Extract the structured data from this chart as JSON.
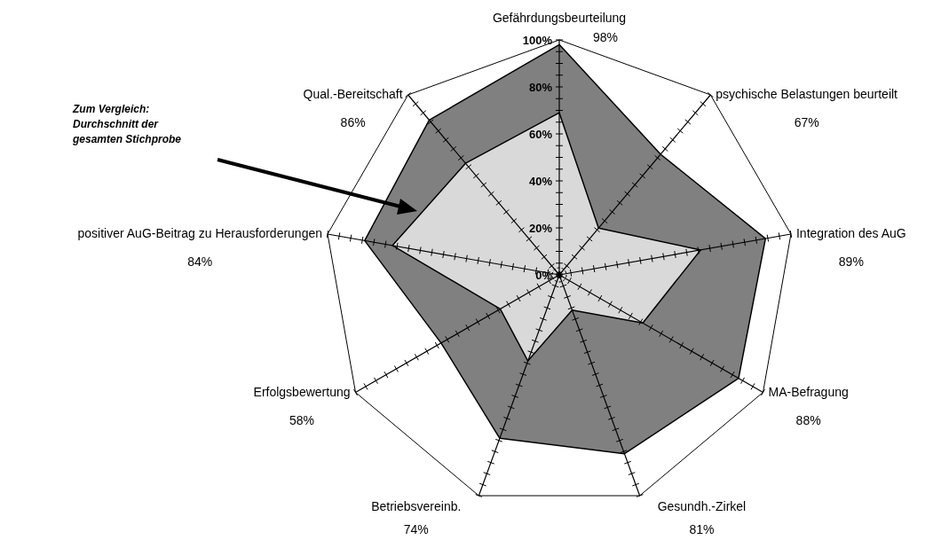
{
  "chart_data": {
    "type": "radar",
    "categories": [
      "Gefährdungsbeurteilung\n98%",
      "psychische Belastungen beurteilt\n67%",
      "Integration des AuG\n89%",
      "MA-Befragung\n88%",
      "Gesundh.-Zirkel\n81%",
      "Betriebsvereinb.\n74%",
      "Erfolgsbewertung\n58%",
      "positiver AuG-Beitrag zu Herausforderungen\n84%",
      "Qual.-Bereitschaft\n86%"
    ],
    "series": [
      {
        "color": "#808080",
        "values": [
          98,
          67,
          89,
          88,
          81,
          74,
          58,
          84,
          86
        ]
      },
      {
        "color": "#d9d9d9",
        "values": [
          69,
          26,
          61,
          41,
          16,
          39,
          29,
          72,
          62
        ]
      }
    ],
    "ylim": [
      0,
      100
    ],
    "yticks": [
      {
        "value": 0,
        "label": "0%"
      },
      {
        "value": 20,
        "label": "20%"
      },
      {
        "value": 40,
        "label": "40%"
      },
      {
        "value": 60,
        "label": "60%"
      },
      {
        "value": 80,
        "label": "80%"
      },
      {
        "value": 100,
        "label": "100%"
      }
    ],
    "annotations": [
      "Zum Vergleich:\nDurchschnitt der\ngesamten Stichprobe"
    ]
  }
}
